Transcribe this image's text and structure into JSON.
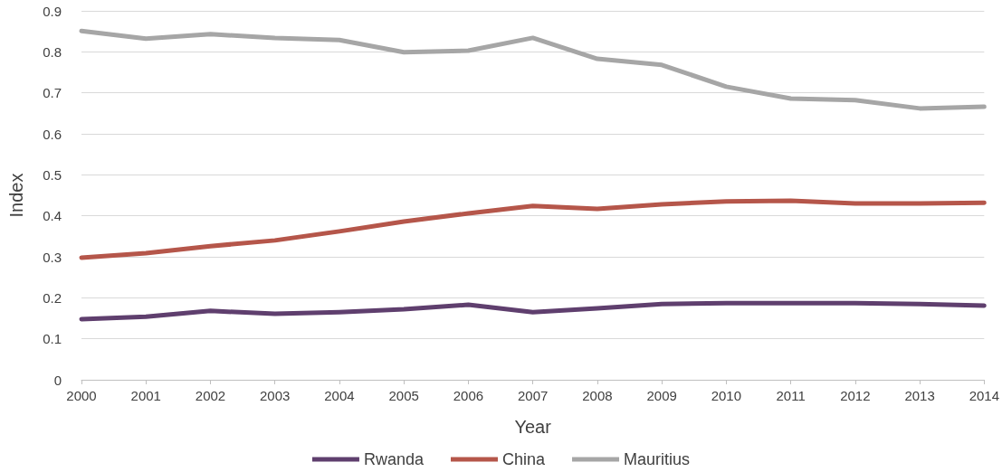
{
  "chart_data": {
    "type": "line",
    "xlabel": "Year",
    "ylabel": "Index",
    "categories": [
      "2000",
      "2001",
      "2002",
      "2003",
      "2004",
      "2005",
      "2006",
      "2007",
      "2008",
      "2009",
      "2010",
      "2011",
      "2012",
      "2013",
      "2014"
    ],
    "series": [
      {
        "name": "Rwanda",
        "color": "#5f3f6e",
        "values": [
          0.148,
          0.154,
          0.168,
          0.161,
          0.165,
          0.172,
          0.183,
          0.165,
          0.174,
          0.185,
          0.187,
          0.187,
          0.187,
          0.185,
          0.181
        ]
      },
      {
        "name": "China",
        "color": "#b5564a",
        "values": [
          0.298,
          0.309,
          0.326,
          0.34,
          0.362,
          0.386,
          0.406,
          0.424,
          0.417,
          0.428,
          0.435,
          0.437,
          0.43,
          0.43,
          0.432
        ]
      },
      {
        "name": "Mauritius",
        "color": "#a6a6a6",
        "values": [
          0.851,
          0.832,
          0.843,
          0.834,
          0.829,
          0.799,
          0.803,
          0.834,
          0.783,
          0.768,
          0.715,
          0.686,
          0.682,
          0.662,
          0.666
        ]
      }
    ],
    "ylim": [
      0,
      0.9
    ],
    "yticks": [
      0,
      0.1,
      0.2,
      0.3,
      0.4,
      0.5,
      0.6,
      0.7,
      0.8,
      0.9
    ],
    "grid": "y",
    "legend": "bottom",
    "marker": "none",
    "line_style": "solid"
  }
}
